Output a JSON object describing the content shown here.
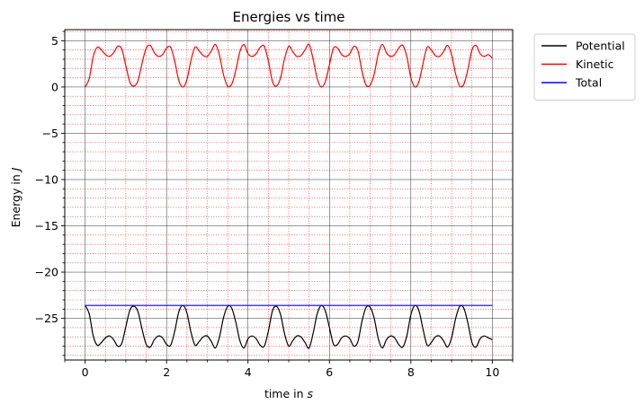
{
  "chart_data": {
    "type": "line",
    "title": "Energies vs time",
    "xlabel_prefix": "time in ",
    "xlabel_unit": "s",
    "ylabel_prefix": "Energy in ",
    "ylabel_unit": "J",
    "xlim": [
      -0.5,
      10.5
    ],
    "ylim": [
      -29.5,
      6.2
    ],
    "x_ticks": [
      0,
      2,
      4,
      6,
      8,
      10
    ],
    "x_tick_labels": [
      "0",
      "2",
      "4",
      "6",
      "8",
      "10"
    ],
    "y_ticks": [
      5,
      0,
      -5,
      -10,
      -15,
      -20,
      -25
    ],
    "y_tick_labels": [
      "5",
      "0",
      "−5",
      "−10",
      "−15",
      "−20",
      "−25"
    ],
    "x_minor_step": 0.5,
    "y_minor_step": 1,
    "grid": {
      "major": true,
      "minor": true,
      "major_color": "#000000",
      "minor_color": "#ff0000"
    },
    "legend_position": "outside-top-right",
    "series": [
      {
        "name": "Potential",
        "color": "#000000",
        "x": [
          0,
          0.1,
          0.2,
          0.3,
          0.4,
          0.5,
          0.6,
          0.7,
          0.8,
          0.9,
          1.0,
          1.1,
          1.2,
          1.3,
          1.4,
          1.5,
          1.6,
          1.7,
          1.8,
          1.9,
          2.0,
          2.1,
          2.2,
          2.3,
          2.4,
          2.5,
          2.6,
          2.7,
          2.8,
          2.9,
          3.0,
          3.1,
          3.2,
          3.3,
          3.4,
          3.5,
          3.6,
          3.7,
          3.8,
          3.9,
          4.0,
          4.1,
          4.2,
          4.3,
          4.4,
          4.5,
          4.6,
          4.7,
          4.8,
          4.9,
          5.0,
          5.1,
          5.2,
          5.3,
          5.4,
          5.5,
          5.6,
          5.7,
          5.8,
          5.9,
          6.0,
          6.1,
          6.2,
          6.3,
          6.4,
          6.5,
          6.6,
          6.7,
          6.8,
          6.9,
          7.0,
          7.1,
          7.2,
          7.3,
          7.4,
          7.5,
          7.6,
          7.7,
          7.8,
          7.9,
          8.0,
          8.1,
          8.2,
          8.3,
          8.4,
          8.5,
          8.6,
          8.7,
          8.8,
          8.9,
          9.0,
          9.1,
          9.2,
          9.3,
          9.4,
          9.5,
          9.6,
          9.7,
          9.8,
          9.9,
          10.0
        ],
        "y": [
          -23.6,
          -24.5,
          -26.9,
          -27.9,
          -27.6,
          -27.1,
          -26.9,
          -27.3,
          -28.0,
          -27.7,
          -25.9,
          -24.1,
          -23.7,
          -24.3,
          -26.2,
          -27.8,
          -28.1,
          -27.3,
          -26.9,
          -27.1,
          -27.8,
          -27.9,
          -26.4,
          -24.3,
          -23.6,
          -24.4,
          -26.5,
          -27.9,
          -27.5,
          -27.0,
          -26.9,
          -27.5,
          -28.2,
          -27.0,
          -24.9,
          -23.7,
          -23.9,
          -25.4,
          -27.4,
          -28.2,
          -27.2,
          -26.9,
          -27.2,
          -27.9,
          -28.0,
          -26.4,
          -24.2,
          -23.7,
          -24.6,
          -26.7,
          -28.0,
          -27.4,
          -26.9,
          -27.0,
          -27.6,
          -28.2,
          -26.6,
          -24.5,
          -23.6,
          -24.2,
          -26.0,
          -27.8,
          -27.8,
          -27.1,
          -26.9,
          -27.2,
          -28.0,
          -27.5,
          -25.3,
          -23.8,
          -23.8,
          -25.0,
          -27.2,
          -28.2,
          -27.3,
          -26.9,
          -27.1,
          -27.8,
          -28.1,
          -26.9,
          -24.6,
          -23.6,
          -24.2,
          -26.2,
          -27.9,
          -27.6,
          -27.0,
          -26.9,
          -27.4,
          -28.1,
          -27.1,
          -25.0,
          -23.7,
          -23.9,
          -25.5,
          -27.6,
          -28.1,
          -27.2,
          -26.9,
          -27.1,
          -27.3
        ]
      },
      {
        "name": "Kinetic",
        "color": "#ff0000",
        "x": [
          0,
          0.1,
          0.2,
          0.3,
          0.4,
          0.5,
          0.6,
          0.7,
          0.8,
          0.9,
          1.0,
          1.1,
          1.2,
          1.3,
          1.4,
          1.5,
          1.6,
          1.7,
          1.8,
          1.9,
          2.0,
          2.1,
          2.2,
          2.3,
          2.4,
          2.5,
          2.6,
          2.7,
          2.8,
          2.9,
          3.0,
          3.1,
          3.2,
          3.3,
          3.4,
          3.5,
          3.6,
          3.7,
          3.8,
          3.9,
          4.0,
          4.1,
          4.2,
          4.3,
          4.4,
          4.5,
          4.6,
          4.7,
          4.8,
          4.9,
          5.0,
          5.1,
          5.2,
          5.3,
          5.4,
          5.5,
          5.6,
          5.7,
          5.8,
          5.9,
          6.0,
          6.1,
          6.2,
          6.3,
          6.4,
          6.5,
          6.6,
          6.7,
          6.8,
          6.9,
          7.0,
          7.1,
          7.2,
          7.3,
          7.4,
          7.5,
          7.6,
          7.7,
          7.8,
          7.9,
          8.0,
          8.1,
          8.2,
          8.3,
          8.4,
          8.5,
          8.6,
          8.7,
          8.8,
          8.9,
          9.0,
          9.1,
          9.2,
          9.3,
          9.4,
          9.5,
          9.6,
          9.7,
          9.8,
          9.9,
          10.0
        ],
        "y": [
          0.0,
          0.9,
          3.3,
          4.3,
          4.0,
          3.5,
          3.3,
          3.7,
          4.4,
          4.1,
          2.3,
          0.5,
          0.1,
          0.7,
          2.6,
          4.2,
          4.5,
          3.7,
          3.3,
          3.5,
          4.2,
          4.3,
          2.8,
          0.7,
          0.0,
          0.8,
          2.9,
          4.3,
          3.9,
          3.4,
          3.3,
          3.9,
          4.6,
          3.4,
          1.3,
          0.1,
          0.3,
          1.8,
          3.8,
          4.6,
          3.6,
          3.3,
          3.6,
          4.3,
          4.4,
          2.8,
          0.6,
          0.1,
          1.0,
          3.1,
          4.4,
          3.8,
          3.3,
          3.4,
          4.0,
          4.6,
          3.0,
          0.9,
          0.0,
          0.6,
          2.4,
          4.2,
          4.2,
          3.5,
          3.3,
          3.6,
          4.4,
          3.9,
          1.7,
          0.2,
          0.2,
          1.4,
          3.6,
          4.6,
          3.7,
          3.3,
          3.5,
          4.2,
          4.5,
          3.3,
          1.0,
          0.0,
          0.6,
          2.6,
          4.3,
          4.0,
          3.4,
          3.3,
          3.8,
          4.5,
          3.5,
          1.4,
          0.1,
          0.3,
          1.9,
          4.0,
          4.5,
          3.6,
          3.3,
          3.5,
          3.1
        ]
      },
      {
        "name": "Total",
        "color": "#0000ff",
        "x": [
          0,
          10
        ],
        "y": [
          -23.6,
          -23.6
        ]
      }
    ]
  }
}
